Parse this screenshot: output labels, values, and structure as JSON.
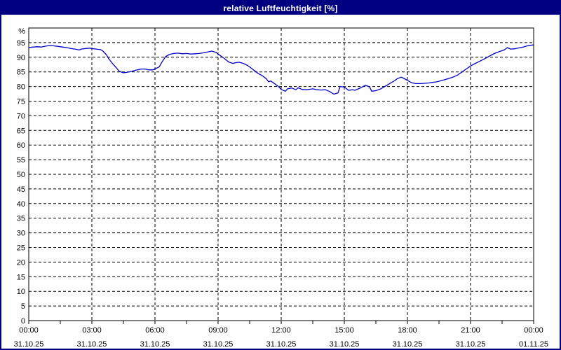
{
  "window": {
    "title": "relative Luftfeuchtigkeit [%]",
    "title_bar_color": "#000080",
    "title_text_color": "#ffffff",
    "border_color": "#000080",
    "background_color": "#fefefe"
  },
  "chart_data": {
    "type": "line",
    "title": "relative Luftfeuchtigkeit [%]",
    "ylabel": "%",
    "xlabel": "",
    "ylim": [
      0,
      100
    ],
    "grid": "dashed",
    "legend_position": "none",
    "line_color": "#0000C8",
    "grid_color": "#000000",
    "axis_text_color": "#000000",
    "y_unit_label": "%",
    "y_ticks": [
      0,
      5,
      10,
      15,
      20,
      25,
      30,
      35,
      40,
      45,
      50,
      55,
      60,
      65,
      70,
      75,
      80,
      85,
      90,
      95
    ],
    "x_ticks": [
      {
        "hour": 0,
        "time": "00:00",
        "date": "31.10.25"
      },
      {
        "hour": 3,
        "time": "03:00",
        "date": "31.10.25"
      },
      {
        "hour": 6,
        "time": "06:00",
        "date": "31.10.25"
      },
      {
        "hour": 9,
        "time": "09:00",
        "date": "31.10.25"
      },
      {
        "hour": 12,
        "time": "12:00",
        "date": "31.10.25"
      },
      {
        "hour": 15,
        "time": "15:00",
        "date": "31.10.25"
      },
      {
        "hour": 18,
        "time": "18:00",
        "date": "31.10.25"
      },
      {
        "hour": 21,
        "time": "21:00",
        "date": "31.10.25"
      },
      {
        "hour": 24,
        "time": "00:00",
        "date": "01.11.25"
      }
    ],
    "minor_tick_interval_hours": 1.5,
    "series": [
      {
        "name": "relative Luftfeuchtigkeit",
        "points": [
          [
            0.0,
            93.3
          ],
          [
            0.2,
            93.5
          ],
          [
            0.4,
            93.6
          ],
          [
            0.6,
            93.5
          ],
          [
            0.8,
            93.8
          ],
          [
            1.0,
            94.0
          ],
          [
            1.2,
            93.9
          ],
          [
            1.4,
            93.7
          ],
          [
            1.6,
            93.5
          ],
          [
            1.8,
            93.3
          ],
          [
            2.0,
            93.0
          ],
          [
            2.2,
            92.8
          ],
          [
            2.4,
            92.5
          ],
          [
            2.5,
            92.8
          ],
          [
            2.7,
            93.0
          ],
          [
            2.9,
            93.1
          ],
          [
            3.0,
            93.0
          ],
          [
            3.2,
            92.8
          ],
          [
            3.4,
            92.6
          ],
          [
            3.5,
            92.3
          ],
          [
            3.7,
            90.8
          ],
          [
            3.8,
            89.5
          ],
          [
            4.0,
            87.7
          ],
          [
            4.2,
            86.1
          ],
          [
            4.3,
            85.2
          ],
          [
            4.5,
            84.7
          ],
          [
            4.7,
            84.9
          ],
          [
            4.9,
            85.2
          ],
          [
            5.1,
            85.6
          ],
          [
            5.3,
            85.9
          ],
          [
            5.5,
            86.0
          ],
          [
            5.7,
            85.7
          ],
          [
            5.9,
            85.7
          ],
          [
            6.0,
            86.0
          ],
          [
            6.2,
            86.7
          ],
          [
            6.3,
            88.0
          ],
          [
            6.5,
            90.2
          ],
          [
            6.7,
            91.0
          ],
          [
            6.9,
            91.3
          ],
          [
            7.1,
            91.4
          ],
          [
            7.3,
            91.2
          ],
          [
            7.5,
            91.3
          ],
          [
            7.7,
            91.1
          ],
          [
            7.9,
            91.2
          ],
          [
            8.1,
            91.3
          ],
          [
            8.3,
            91.5
          ],
          [
            8.5,
            91.8
          ],
          [
            8.7,
            92.1
          ],
          [
            8.9,
            91.7
          ],
          [
            9.0,
            91.1
          ],
          [
            9.2,
            90.1
          ],
          [
            9.4,
            89.0
          ],
          [
            9.5,
            88.4
          ],
          [
            9.7,
            87.9
          ],
          [
            9.8,
            88.1
          ],
          [
            10.0,
            88.3
          ],
          [
            10.2,
            87.9
          ],
          [
            10.4,
            87.2
          ],
          [
            10.5,
            86.7
          ],
          [
            10.7,
            85.6
          ],
          [
            10.9,
            84.5
          ],
          [
            11.1,
            83.7
          ],
          [
            11.3,
            82.6
          ],
          [
            11.4,
            81.6
          ],
          [
            11.5,
            81.9
          ],
          [
            11.7,
            80.9
          ],
          [
            11.9,
            79.8
          ],
          [
            12.0,
            79.0
          ],
          [
            12.2,
            78.4
          ],
          [
            12.3,
            79.2
          ],
          [
            12.5,
            79.5
          ],
          [
            12.7,
            78.9
          ],
          [
            12.8,
            79.6
          ],
          [
            13.0,
            79.0
          ],
          [
            13.2,
            78.9
          ],
          [
            13.4,
            79.1
          ],
          [
            13.5,
            79.2
          ],
          [
            13.7,
            78.9
          ],
          [
            13.9,
            78.8
          ],
          [
            14.1,
            78.9
          ],
          [
            14.3,
            78.3
          ],
          [
            14.5,
            77.4
          ],
          [
            14.7,
            77.8
          ],
          [
            14.8,
            80.0
          ],
          [
            15.0,
            79.8
          ],
          [
            15.2,
            78.7
          ],
          [
            15.4,
            78.9
          ],
          [
            15.5,
            78.7
          ],
          [
            15.7,
            79.3
          ],
          [
            15.9,
            80.0
          ],
          [
            16.0,
            80.4
          ],
          [
            16.2,
            79.9
          ],
          [
            16.3,
            78.4
          ],
          [
            16.5,
            78.6
          ],
          [
            16.7,
            79.1
          ],
          [
            16.9,
            79.9
          ],
          [
            17.0,
            80.3
          ],
          [
            17.2,
            81.2
          ],
          [
            17.4,
            82.0
          ],
          [
            17.5,
            82.6
          ],
          [
            17.7,
            83.2
          ],
          [
            17.8,
            82.9
          ],
          [
            18.0,
            82.1
          ],
          [
            18.2,
            81.3
          ],
          [
            18.4,
            81.0
          ],
          [
            18.6,
            81.0
          ],
          [
            18.8,
            81.1
          ],
          [
            19.0,
            81.2
          ],
          [
            19.2,
            81.4
          ],
          [
            19.4,
            81.6
          ],
          [
            19.6,
            82.0
          ],
          [
            19.8,
            82.4
          ],
          [
            20.0,
            82.8
          ],
          [
            20.2,
            83.3
          ],
          [
            20.4,
            84.0
          ],
          [
            20.6,
            85.0
          ],
          [
            20.8,
            86.0
          ],
          [
            21.0,
            87.0
          ],
          [
            21.2,
            87.8
          ],
          [
            21.4,
            88.5
          ],
          [
            21.6,
            89.2
          ],
          [
            21.8,
            90.0
          ],
          [
            22.0,
            90.8
          ],
          [
            22.2,
            91.5
          ],
          [
            22.4,
            92.0
          ],
          [
            22.6,
            92.5
          ],
          [
            22.75,
            93.3
          ],
          [
            22.9,
            92.8
          ],
          [
            23.1,
            92.9
          ],
          [
            23.3,
            93.2
          ],
          [
            23.5,
            93.5
          ],
          [
            23.7,
            93.9
          ],
          [
            23.85,
            94.1
          ],
          [
            24.0,
            94.2
          ]
        ]
      }
    ]
  }
}
